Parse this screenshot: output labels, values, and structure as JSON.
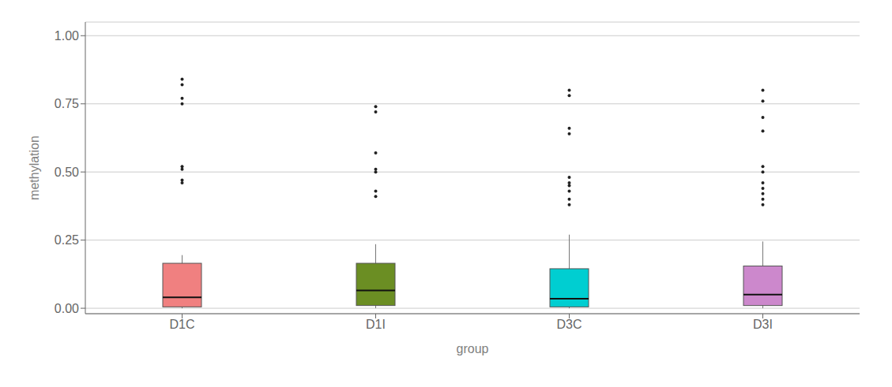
{
  "chart_data": {
    "type": "box",
    "xlabel": "group",
    "ylabel": "methylation",
    "categories": [
      "D1C",
      "D1I",
      "D3C",
      "D3I"
    ],
    "colors": [
      "#F08080",
      "#6B8E23",
      "#00CED1",
      "#CC88CC"
    ],
    "boxes": [
      {
        "whislo": 0.0,
        "q1": 0.005,
        "med": 0.04,
        "q3": 0.165,
        "whishi": 0.195,
        "fliers": [
          0.46,
          0.47,
          0.51,
          0.52,
          0.75,
          0.77,
          0.82,
          0.84
        ]
      },
      {
        "whislo": 0.0,
        "q1": 0.01,
        "med": 0.065,
        "q3": 0.165,
        "whishi": 0.235,
        "fliers": [
          0.41,
          0.43,
          0.5,
          0.51,
          0.57,
          0.72,
          0.74
        ]
      },
      {
        "whislo": 0.0,
        "q1": 0.005,
        "med": 0.035,
        "q3": 0.145,
        "whishi": 0.27,
        "fliers": [
          0.38,
          0.4,
          0.43,
          0.45,
          0.46,
          0.48,
          0.64,
          0.66,
          0.78,
          0.8
        ]
      },
      {
        "whislo": 0.0,
        "q1": 0.01,
        "med": 0.05,
        "q3": 0.155,
        "whishi": 0.245,
        "fliers": [
          0.38,
          0.4,
          0.42,
          0.44,
          0.46,
          0.5,
          0.52,
          0.65,
          0.7,
          0.76,
          0.8
        ]
      }
    ],
    "ylim": [
      -0.02,
      1.05
    ],
    "yticks": [
      {
        "value": 0.0,
        "label": "0.00"
      },
      {
        "value": 0.25,
        "label": "0.25"
      },
      {
        "value": 0.5,
        "label": "0.50"
      },
      {
        "value": 0.75,
        "label": "0.75"
      },
      {
        "value": 1.0,
        "label": "1.00"
      }
    ],
    "grid": true
  }
}
